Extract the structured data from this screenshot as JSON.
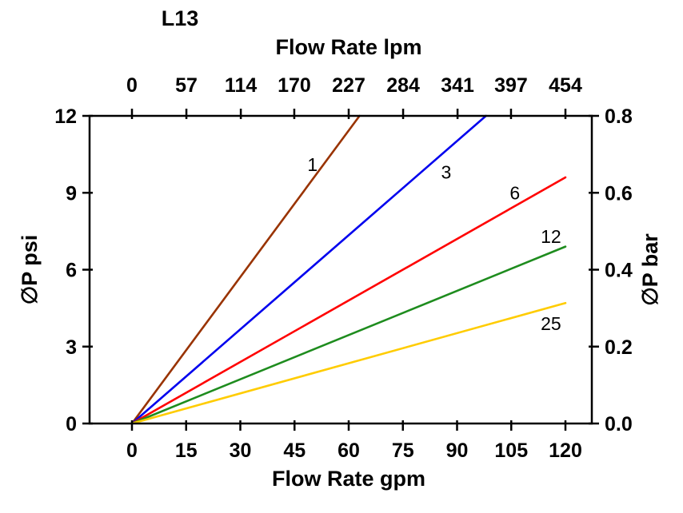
{
  "chart_data": {
    "type": "line",
    "title": "L13",
    "axes": {
      "top": {
        "label": "Flow Rate lpm",
        "ticks": [
          "0",
          "57",
          "114",
          "170",
          "227",
          "284",
          "341",
          "397",
          "454"
        ],
        "range": [
          0,
          454
        ]
      },
      "bottom": {
        "label": "Flow Rate gpm",
        "ticks": [
          "0",
          "15",
          "30",
          "45",
          "60",
          "75",
          "90",
          "105",
          "120"
        ],
        "range": [
          0,
          120
        ]
      },
      "left": {
        "label": "∅P psi",
        "ticks": [
          "0",
          "3",
          "6",
          "9",
          "12"
        ],
        "range": [
          0,
          12
        ]
      },
      "right": {
        "label": "∅P bar",
        "ticks": [
          "0.0",
          "0.2",
          "0.4",
          "0.6",
          "0.8"
        ],
        "range": [
          0,
          0.8
        ]
      }
    },
    "grid": false,
    "legend": "inline-labels-on-curves",
    "series": [
      {
        "name": "1",
        "color": "#993300",
        "points_gpm_psi": [
          [
            0,
            0
          ],
          [
            63,
            12
          ]
        ],
        "label_at": [
          50,
          10.1
        ]
      },
      {
        "name": "3",
        "color": "#0000EE",
        "points_gpm_psi": [
          [
            0,
            0
          ],
          [
            98,
            12
          ]
        ],
        "label_at": [
          87,
          9.8
        ]
      },
      {
        "name": "6",
        "color": "#FF0000",
        "points_gpm_psi": [
          [
            0,
            0
          ],
          [
            120,
            9.6
          ]
        ],
        "label_at": [
          106,
          9.0
        ]
      },
      {
        "name": "12",
        "color": "#1E8C1E",
        "points_gpm_psi": [
          [
            0,
            0
          ],
          [
            120,
            6.9
          ]
        ],
        "label_at": [
          116,
          7.3
        ]
      },
      {
        "name": "25",
        "color": "#FFCC00",
        "points_gpm_psi": [
          [
            0,
            0
          ],
          [
            120,
            4.7
          ]
        ],
        "label_at": [
          116,
          3.9
        ]
      }
    ]
  }
}
